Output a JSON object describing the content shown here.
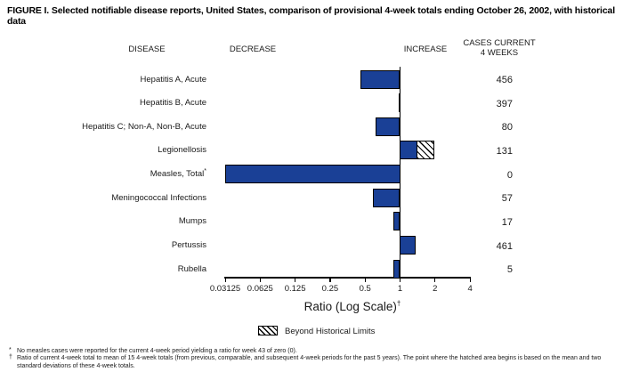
{
  "figure": {
    "title": "FIGURE I. Selected notifiable disease reports, United States, comparison of provisional 4-week totals ending October 26, 2002, with historical data"
  },
  "columns": {
    "disease": "DISEASE",
    "decrease": "DECREASE",
    "increase": "INCREASE",
    "cases_line1": "CASES CURRENT",
    "cases_line2": "4 WEEKS"
  },
  "chart_data": {
    "type": "bar",
    "orientation": "horizontal",
    "scale": "log2",
    "title": "Selected notifiable disease reports, ratio of provisional 4-week totals to historical data",
    "xlabel": "Ratio (Log Scale)",
    "xlabel_superscript": "†",
    "axis": {
      "xmin": 0.03125,
      "xmax": 4,
      "baseline": 1,
      "tick_values": [
        0.03125,
        0.0625,
        0.125,
        0.25,
        0.5,
        1,
        2,
        4
      ],
      "tick_labels": [
        "0.03125",
        "0.0625",
        "0.125",
        "0.25",
        "0.5",
        "1",
        "2",
        "4"
      ]
    },
    "rows": [
      {
        "disease": "Hepatitis A, Acute",
        "marker": "",
        "ratio": 0.46,
        "cases": "456"
      },
      {
        "disease": "Hepatitis B, Acute",
        "marker": "",
        "ratio": 0.97,
        "cases": "397"
      },
      {
        "disease": "Hepatitis C; Non-A, Non-B, Acute",
        "marker": "",
        "ratio": 0.62,
        "cases": "80"
      },
      {
        "disease": "Legionellosis",
        "marker": "",
        "ratio": 1.98,
        "hatch_from": 1.4,
        "beyond_historical_limits": true,
        "cases": "131"
      },
      {
        "disease": "Measles, Total",
        "marker": "*",
        "ratio": 0,
        "cases": "0"
      },
      {
        "disease": "Meningococcal Infections",
        "marker": "",
        "ratio": 0.58,
        "cases": "57"
      },
      {
        "disease": "Mumps",
        "marker": "",
        "ratio": 0.88,
        "cases": "17"
      },
      {
        "disease": "Pertussis",
        "marker": "",
        "ratio": 1.35,
        "cases": "461"
      },
      {
        "disease": "Rubella",
        "marker": "",
        "ratio": 0.88,
        "cases": "5"
      }
    ],
    "legend": [
      {
        "swatch": "hatched",
        "label": "Beyond Historical Limits"
      }
    ],
    "colors": {
      "bar": "#1a4096",
      "hatch_line": "#000000",
      "text": "#1a1a1a"
    },
    "grid": false,
    "legend_position": "bottom-center"
  },
  "footnotes": [
    {
      "marker": "*",
      "text": "No measles cases were reported for the current 4-week period yielding a ratio for week 43 of zero (0)."
    },
    {
      "marker": "†",
      "text": "Ratio of current 4-week total to mean of 15 4-week totals (from previous, comparable, and subsequent 4-week periods for the past 5 years). The point where the hatched area begins is based on the mean and two standard deviations of these 4-week totals."
    }
  ]
}
